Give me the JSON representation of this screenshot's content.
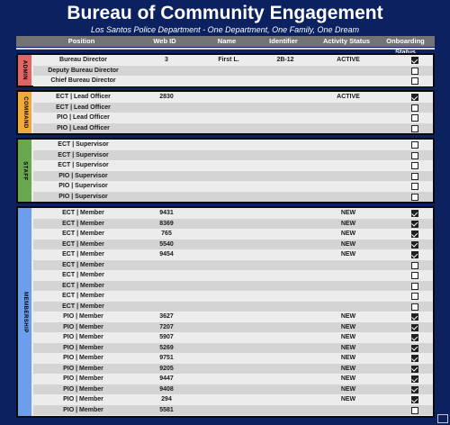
{
  "title": "Bureau of Community Engagement",
  "subtitle": "Los Santos Police Department - One Department, One Family, One Dream",
  "columns": {
    "position": "Position",
    "web_id": "Web ID",
    "name": "Name",
    "identifier": "Identifier",
    "activity": "Activity Status",
    "onboarding": "Onboarding Status"
  },
  "sections": [
    {
      "label": "ADMIN",
      "color": "#e06666",
      "rows": [
        {
          "position": "Bureau Director",
          "web_id": "3",
          "name": "First L.",
          "identifier": "2B-12",
          "activity": "ACTIVE",
          "onboarded": true
        },
        {
          "position": "Deputy Bureau Director",
          "web_id": "",
          "name": "",
          "identifier": "",
          "activity": "",
          "onboarded": false
        },
        {
          "position": "Chief Bureau Director",
          "web_id": "",
          "name": "",
          "identifier": "",
          "activity": "",
          "onboarded": false
        }
      ]
    },
    {
      "label": "COMMAND",
      "color": "#f1a93a",
      "rows": [
        {
          "position": "ECT | Lead Officer",
          "web_id": "2830",
          "name": "",
          "identifier": "",
          "activity": "ACTIVE",
          "onboarded": true
        },
        {
          "position": "ECT | Lead Officer",
          "web_id": "",
          "name": "",
          "identifier": "",
          "activity": "",
          "onboarded": false
        },
        {
          "position": "PIO | Lead Officer",
          "web_id": "",
          "name": "",
          "identifier": "",
          "activity": "",
          "onboarded": false
        },
        {
          "position": "PIO | Lead Officer",
          "web_id": "",
          "name": "",
          "identifier": "",
          "activity": "",
          "onboarded": false
        }
      ]
    },
    {
      "label": "STAFF",
      "color": "#6aa84f",
      "rows": [
        {
          "position": "ECT | Supervisor",
          "web_id": "",
          "name": "",
          "identifier": "",
          "activity": "",
          "onboarded": false
        },
        {
          "position": "ECT | Supervisor",
          "web_id": "",
          "name": "",
          "identifier": "",
          "activity": "",
          "onboarded": false
        },
        {
          "position": "ECT | Supervisor",
          "web_id": "",
          "name": "",
          "identifier": "",
          "activity": "",
          "onboarded": false
        },
        {
          "position": "PIO | Supervisor",
          "web_id": "",
          "name": "",
          "identifier": "",
          "activity": "",
          "onboarded": false
        },
        {
          "position": "PIO | Supervisor",
          "web_id": "",
          "name": "",
          "identifier": "",
          "activity": "",
          "onboarded": false
        },
        {
          "position": "PIO | Supervisor",
          "web_id": "",
          "name": "",
          "identifier": "",
          "activity": "",
          "onboarded": false
        }
      ]
    },
    {
      "label": "MEMBERSHIP",
      "color": "#6d9eeb",
      "rows": [
        {
          "position": "ECT | Member",
          "web_id": "9431",
          "name": "",
          "identifier": "",
          "activity": "NEW",
          "onboarded": true
        },
        {
          "position": "ECT | Member",
          "web_id": "8369",
          "name": "",
          "identifier": "",
          "activity": "NEW",
          "onboarded": true
        },
        {
          "position": "ECT | Member",
          "web_id": "765",
          "name": "",
          "identifier": "",
          "activity": "NEW",
          "onboarded": true
        },
        {
          "position": "ECT | Member",
          "web_id": "5540",
          "name": "",
          "identifier": "",
          "activity": "NEW",
          "onboarded": true
        },
        {
          "position": "ECT | Member",
          "web_id": "9454",
          "name": "",
          "identifier": "",
          "activity": "NEW",
          "onboarded": true
        },
        {
          "position": "ECT | Member",
          "web_id": "",
          "name": "",
          "identifier": "",
          "activity": "",
          "onboarded": false
        },
        {
          "position": "ECT | Member",
          "web_id": "",
          "name": "",
          "identifier": "",
          "activity": "",
          "onboarded": false
        },
        {
          "position": "ECT | Member",
          "web_id": "",
          "name": "",
          "identifier": "",
          "activity": "",
          "onboarded": false
        },
        {
          "position": "ECT | Member",
          "web_id": "",
          "name": "",
          "identifier": "",
          "activity": "",
          "onboarded": false
        },
        {
          "position": "ECT | Member",
          "web_id": "",
          "name": "",
          "identifier": "",
          "activity": "",
          "onboarded": false
        },
        {
          "position": "PIO | Member",
          "web_id": "3627",
          "name": "",
          "identifier": "",
          "activity": "NEW",
          "onboarded": true
        },
        {
          "position": "PIO | Member",
          "web_id": "7207",
          "name": "",
          "identifier": "",
          "activity": "NEW",
          "onboarded": true
        },
        {
          "position": "PIO | Member",
          "web_id": "5907",
          "name": "",
          "identifier": "",
          "activity": "NEW",
          "onboarded": true
        },
        {
          "position": "PIO | Member",
          "web_id": "5269",
          "name": "",
          "identifier": "",
          "activity": "NEW",
          "onboarded": true
        },
        {
          "position": "PIO | Member",
          "web_id": "9751",
          "name": "",
          "identifier": "",
          "activity": "NEW",
          "onboarded": true
        },
        {
          "position": "PIO | Member",
          "web_id": "9205",
          "name": "",
          "identifier": "",
          "activity": "NEW",
          "onboarded": true
        },
        {
          "position": "PIO | Member",
          "web_id": "9447",
          "name": "",
          "identifier": "",
          "activity": "NEW",
          "onboarded": true
        },
        {
          "position": "PIO | Member",
          "web_id": "9408",
          "name": "",
          "identifier": "",
          "activity": "NEW",
          "onboarded": true
        },
        {
          "position": "PIO | Member",
          "web_id": "294",
          "name": "",
          "identifier": "",
          "activity": "NEW",
          "onboarded": true
        },
        {
          "position": "PIO | Member",
          "web_id": "5581",
          "name": "",
          "identifier": "",
          "activity": "",
          "onboarded": false
        }
      ]
    }
  ]
}
